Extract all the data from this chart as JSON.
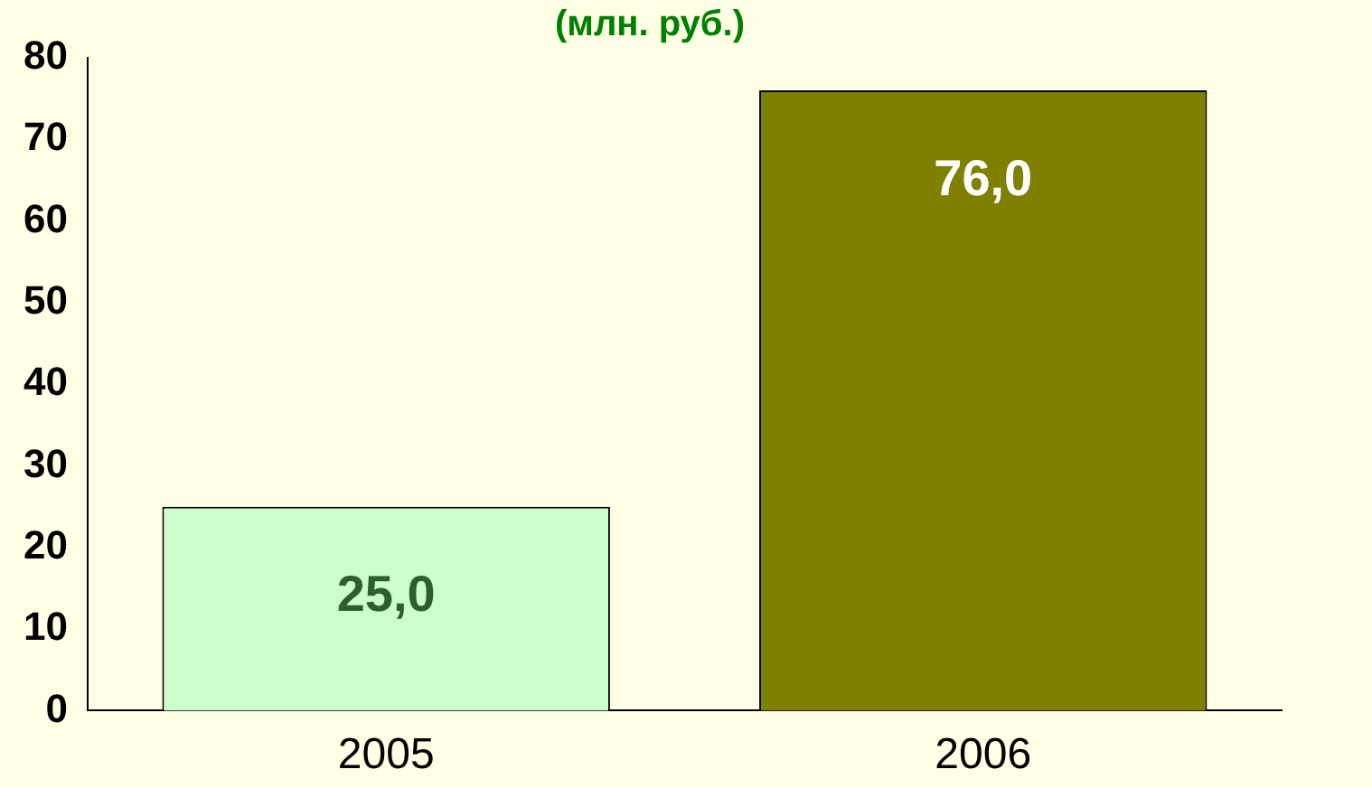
{
  "chart_data": {
    "type": "bar",
    "title": "(млн. руб.)",
    "categories": [
      "2005",
      "2006"
    ],
    "values": [
      25,
      76
    ],
    "colors": [
      "#ccffcc",
      "#808000"
    ],
    "value_labels": [
      "25,0",
      "76,0"
    ],
    "ylim": [
      0,
      80
    ],
    "yticks": [
      0,
      10,
      20,
      30,
      40,
      50,
      60,
      70,
      80
    ],
    "grid": false,
    "legend": false
  }
}
